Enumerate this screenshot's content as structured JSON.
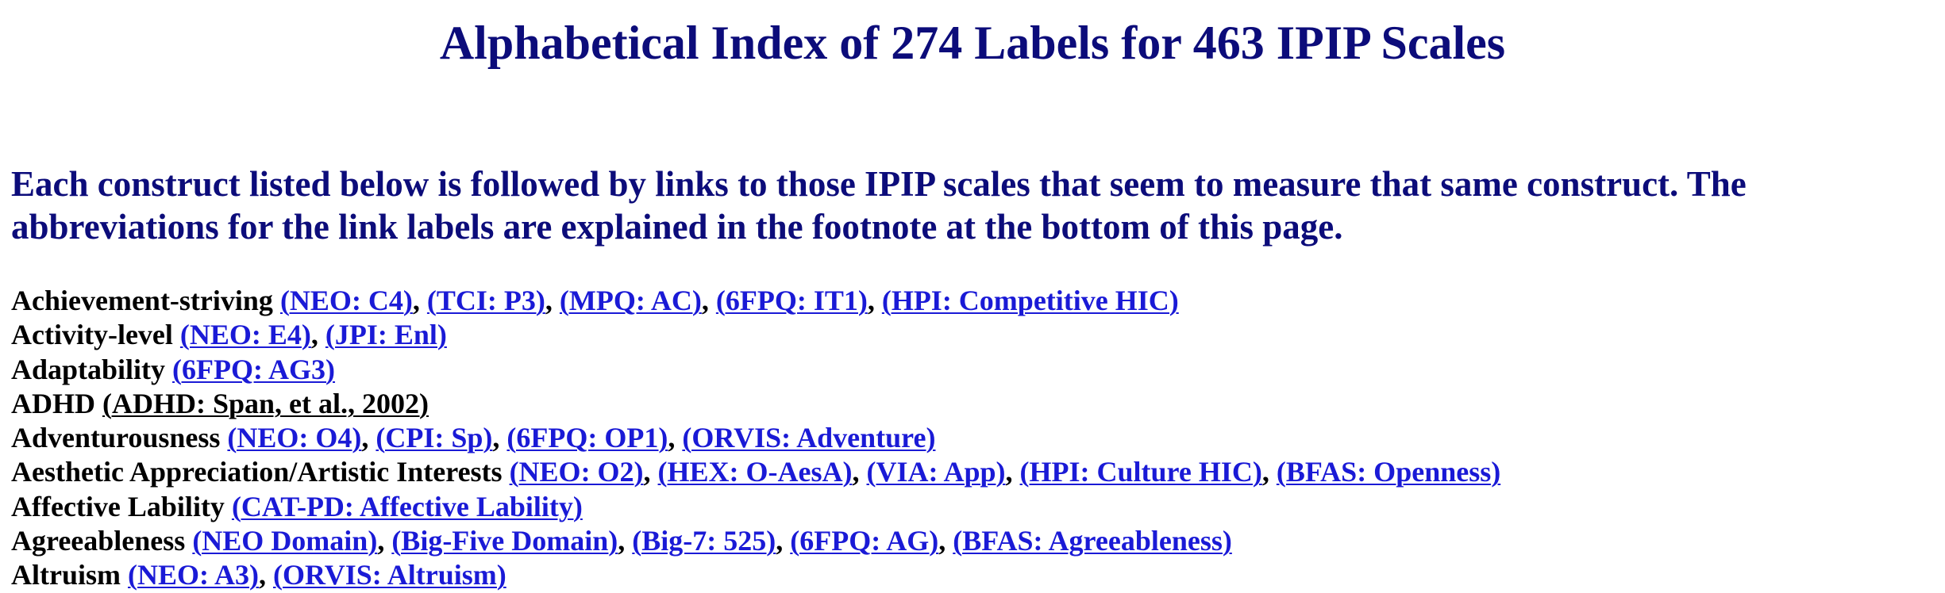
{
  "page": {
    "title": "Alphabetical Index of 274 Labels for 463 IPIP Scales",
    "intro": "Each construct listed below is followed by links to those IPIP scales that seem to measure that same construct.  The abbreviations for the link labels are explained in the footnote at the bottom of this page."
  },
  "colors": {
    "heading": "#0c0c7a",
    "link": "#1a1ad6",
    "visited_link": "#000000",
    "text": "#000000"
  },
  "entries": [
    {
      "construct": "Achievement-striving",
      "links": [
        {
          "label": "NEO: C4",
          "visited": false
        },
        {
          "label": "TCI: P3",
          "visited": false
        },
        {
          "label": "MPQ: AC",
          "visited": false
        },
        {
          "label": "6FPQ: IT1",
          "visited": false
        },
        {
          "label": "HPI: Competitive HIC",
          "visited": false
        }
      ]
    },
    {
      "construct": "Activity-level",
      "links": [
        {
          "label": "NEO: E4",
          "visited": false
        },
        {
          "label": "JPI: Enl",
          "visited": false
        }
      ]
    },
    {
      "construct": "Adaptability",
      "links": [
        {
          "label": "6FPQ: AG3",
          "visited": false
        }
      ]
    },
    {
      "construct": "ADHD",
      "links": [
        {
          "label": "ADHD: Span, et al., 2002",
          "visited": true
        }
      ]
    },
    {
      "construct": "Adventurousness",
      "links": [
        {
          "label": "NEO: O4",
          "visited": false
        },
        {
          "label": "CPI: Sp",
          "visited": false
        },
        {
          "label": "6FPQ: OP1",
          "visited": false
        },
        {
          "label": "ORVIS: Adventure",
          "visited": false
        }
      ]
    },
    {
      "construct": "Aesthetic Appreciation/Artistic Interests",
      "links": [
        {
          "label": "NEO: O2",
          "visited": false
        },
        {
          "label": "HEX: O-AesA",
          "visited": false
        },
        {
          "label": "VIA: App",
          "visited": false
        },
        {
          "label": "HPI: Culture HIC",
          "visited": false
        },
        {
          "label": "BFAS: Openness",
          "visited": false
        }
      ]
    },
    {
      "construct": "Affective Lability",
      "links": [
        {
          "label": "CAT-PD: Affective Lability",
          "visited": false
        }
      ]
    },
    {
      "construct": "Agreeableness",
      "links": [
        {
          "label": "NEO Domain",
          "visited": false
        },
        {
          "label": "Big-Five Domain",
          "visited": false
        },
        {
          "label": "Big-7: 525",
          "visited": false
        },
        {
          "label": "6FPQ: AG",
          "visited": false
        },
        {
          "label": "BFAS: Agreeableness",
          "visited": false
        }
      ]
    },
    {
      "construct": "Altruism",
      "links": [
        {
          "label": "NEO: A3",
          "visited": false
        },
        {
          "label": "ORVIS: Altruism",
          "visited": false
        }
      ]
    }
  ]
}
